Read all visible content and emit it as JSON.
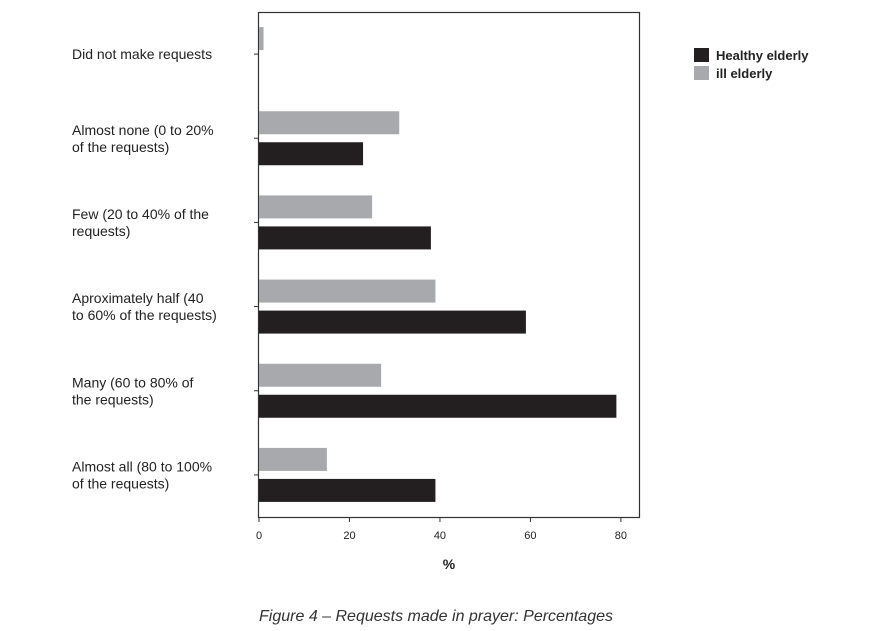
{
  "caption": "Figure 4 – Requests made in prayer: Percentages",
  "chart_data": {
    "type": "bar",
    "orientation": "horizontal",
    "categories": [
      [
        "Did not  make requests"
      ],
      [
        "Almost none (0 to 20%",
        "of the requests)"
      ],
      [
        "Few (20 to 40% of the",
        "requests)"
      ],
      [
        "Aproximately half (40",
        "to 60% of the requests)"
      ],
      [
        "Many (60 to 80% of",
        "the requests)"
      ],
      [
        "Almost all (80 to 100%",
        "of the requests)"
      ]
    ],
    "series": [
      {
        "name": "Healthy elderly",
        "color": "#231f20",
        "values": [
          0,
          23,
          38,
          59,
          79,
          39
        ]
      },
      {
        "name": "ill  elderly",
        "color": "#a7a9ac",
        "values": [
          1,
          31,
          25,
          39,
          27,
          15
        ]
      }
    ],
    "xlabel": "%",
    "ylabel": "",
    "xlim": [
      0,
      84
    ],
    "xticks": [
      0,
      20,
      40,
      60,
      80
    ],
    "legend_position": "top-right",
    "grid": false
  }
}
